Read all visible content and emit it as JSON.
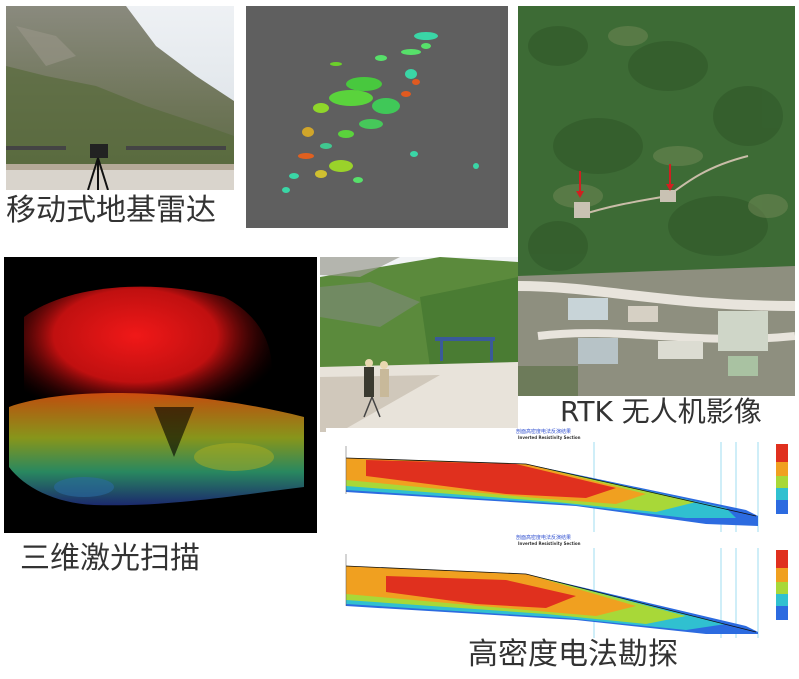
{
  "captions": {
    "gb_radar": "移动式地基雷达",
    "laser_scan": "三维激光扫描",
    "rtk_uav": "RTK 无人机影像",
    "resistivity": "高密度电法勘探"
  },
  "resistivity_sections": [
    {
      "title_cn": "剖面高密度电法反演结果",
      "title_en": "Inverted Resistivity Section"
    },
    {
      "title_cn": "剖面高密度电法反演结果",
      "title_en": "Inverted Resistivity Section"
    }
  ],
  "colors": {
    "caption_text": "#333333",
    "radar_background": "#5f5f5f",
    "laser_background": "#000000",
    "vegetation": "#3d6b35",
    "resistivity_high": "#e0301e",
    "resistivity_low": "#2040c0"
  }
}
